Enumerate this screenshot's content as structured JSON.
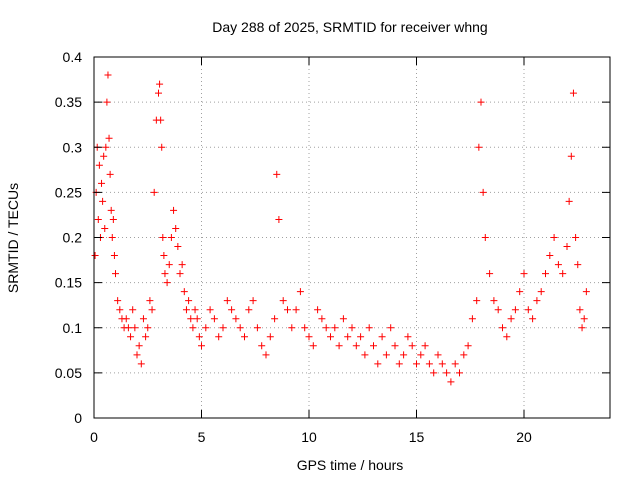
{
  "chart_data": {
    "type": "scatter",
    "title": "Day 288 of 2025, SRMTID for receiver whng",
    "xlabel": "GPS time / hours",
    "ylabel": "SRMTID / TECUs",
    "xlim": [
      0,
      24
    ],
    "ylim": [
      0,
      0.4
    ],
    "xticks": [
      0,
      5,
      10,
      15,
      20
    ],
    "xtick_labels": [
      "0",
      "5",
      "10",
      "15",
      "20"
    ],
    "yticks": [
      0,
      0.05,
      0.1,
      0.15,
      0.2,
      0.25,
      0.3,
      0.35,
      0.4
    ],
    "ytick_labels": [
      "0",
      "0.05",
      "0.1",
      "0.15",
      "0.2",
      "0.25",
      "0.3",
      "0.35",
      "0.4"
    ],
    "grid": true,
    "marker": "+",
    "marker_color": "#ff0000",
    "series": [
      {
        "name": "SRMTID",
        "x": [
          0.05,
          0.1,
          0.15,
          0.2,
          0.25,
          0.3,
          0.35,
          0.4,
          0.45,
          0.5,
          0.55,
          0.6,
          0.65,
          0.7,
          0.75,
          0.8,
          0.85,
          0.9,
          0.95,
          1.0,
          1.1,
          1.2,
          1.3,
          1.4,
          1.5,
          1.6,
          1.7,
          1.8,
          1.9,
          2.0,
          2.1,
          2.2,
          2.3,
          2.4,
          2.5,
          2.6,
          2.7,
          2.8,
          2.9,
          3.0,
          3.05,
          3.1,
          3.15,
          3.2,
          3.25,
          3.3,
          3.4,
          3.5,
          3.6,
          3.7,
          3.8,
          3.9,
          4.0,
          4.1,
          4.2,
          4.3,
          4.4,
          4.5,
          4.6,
          4.7,
          4.8,
          4.9,
          5.0,
          5.2,
          5.4,
          5.6,
          5.8,
          6.0,
          6.2,
          6.4,
          6.6,
          6.8,
          7.0,
          7.2,
          7.4,
          7.6,
          7.8,
          8.0,
          8.2,
          8.4,
          8.5,
          8.6,
          8.8,
          9.0,
          9.2,
          9.4,
          9.6,
          9.8,
          10.0,
          10.2,
          10.4,
          10.6,
          10.8,
          11.0,
          11.2,
          11.4,
          11.6,
          11.8,
          12.0,
          12.2,
          12.4,
          12.6,
          12.8,
          13.0,
          13.2,
          13.4,
          13.6,
          13.8,
          14.0,
          14.2,
          14.4,
          14.6,
          14.8,
          15.0,
          15.2,
          15.4,
          15.6,
          15.8,
          16.0,
          16.2,
          16.4,
          16.6,
          16.8,
          17.0,
          17.2,
          17.4,
          17.6,
          17.8,
          17.9,
          18.0,
          18.1,
          18.2,
          18.4,
          18.6,
          18.8,
          19.0,
          19.2,
          19.4,
          19.6,
          19.8,
          20.0,
          20.2,
          20.4,
          20.6,
          20.8,
          21.0,
          21.2,
          21.4,
          21.6,
          21.8,
          22.0,
          22.1,
          22.2,
          22.3,
          22.4,
          22.5,
          22.6,
          22.7,
          22.8,
          22.9
        ],
        "y": [
          0.18,
          0.25,
          0.3,
          0.22,
          0.28,
          0.2,
          0.26,
          0.24,
          0.29,
          0.21,
          0.3,
          0.35,
          0.38,
          0.31,
          0.27,
          0.23,
          0.2,
          0.22,
          0.18,
          0.16,
          0.13,
          0.12,
          0.11,
          0.1,
          0.11,
          0.1,
          0.09,
          0.12,
          0.1,
          0.07,
          0.08,
          0.06,
          0.11,
          0.09,
          0.1,
          0.13,
          0.12,
          0.25,
          0.33,
          0.36,
          0.37,
          0.33,
          0.3,
          0.2,
          0.18,
          0.16,
          0.15,
          0.17,
          0.2,
          0.23,
          0.21,
          0.19,
          0.16,
          0.17,
          0.14,
          0.12,
          0.13,
          0.11,
          0.1,
          0.12,
          0.11,
          0.09,
          0.08,
          0.1,
          0.12,
          0.11,
          0.09,
          0.1,
          0.13,
          0.12,
          0.11,
          0.1,
          0.09,
          0.12,
          0.13,
          0.1,
          0.08,
          0.07,
          0.09,
          0.11,
          0.27,
          0.22,
          0.13,
          0.12,
          0.1,
          0.12,
          0.14,
          0.1,
          0.09,
          0.08,
          0.12,
          0.11,
          0.1,
          0.09,
          0.1,
          0.08,
          0.11,
          0.09,
          0.1,
          0.08,
          0.09,
          0.07,
          0.1,
          0.08,
          0.06,
          0.09,
          0.07,
          0.1,
          0.08,
          0.06,
          0.07,
          0.09,
          0.08,
          0.06,
          0.07,
          0.08,
          0.06,
          0.05,
          0.07,
          0.06,
          0.05,
          0.04,
          0.06,
          0.05,
          0.07,
          0.08,
          0.11,
          0.13,
          0.3,
          0.35,
          0.25,
          0.2,
          0.16,
          0.13,
          0.12,
          0.1,
          0.09,
          0.11,
          0.12,
          0.14,
          0.16,
          0.12,
          0.11,
          0.13,
          0.14,
          0.16,
          0.18,
          0.2,
          0.17,
          0.16,
          0.19,
          0.24,
          0.29,
          0.36,
          0.2,
          0.17,
          0.12,
          0.1,
          0.11,
          0.14
        ]
      }
    ]
  }
}
